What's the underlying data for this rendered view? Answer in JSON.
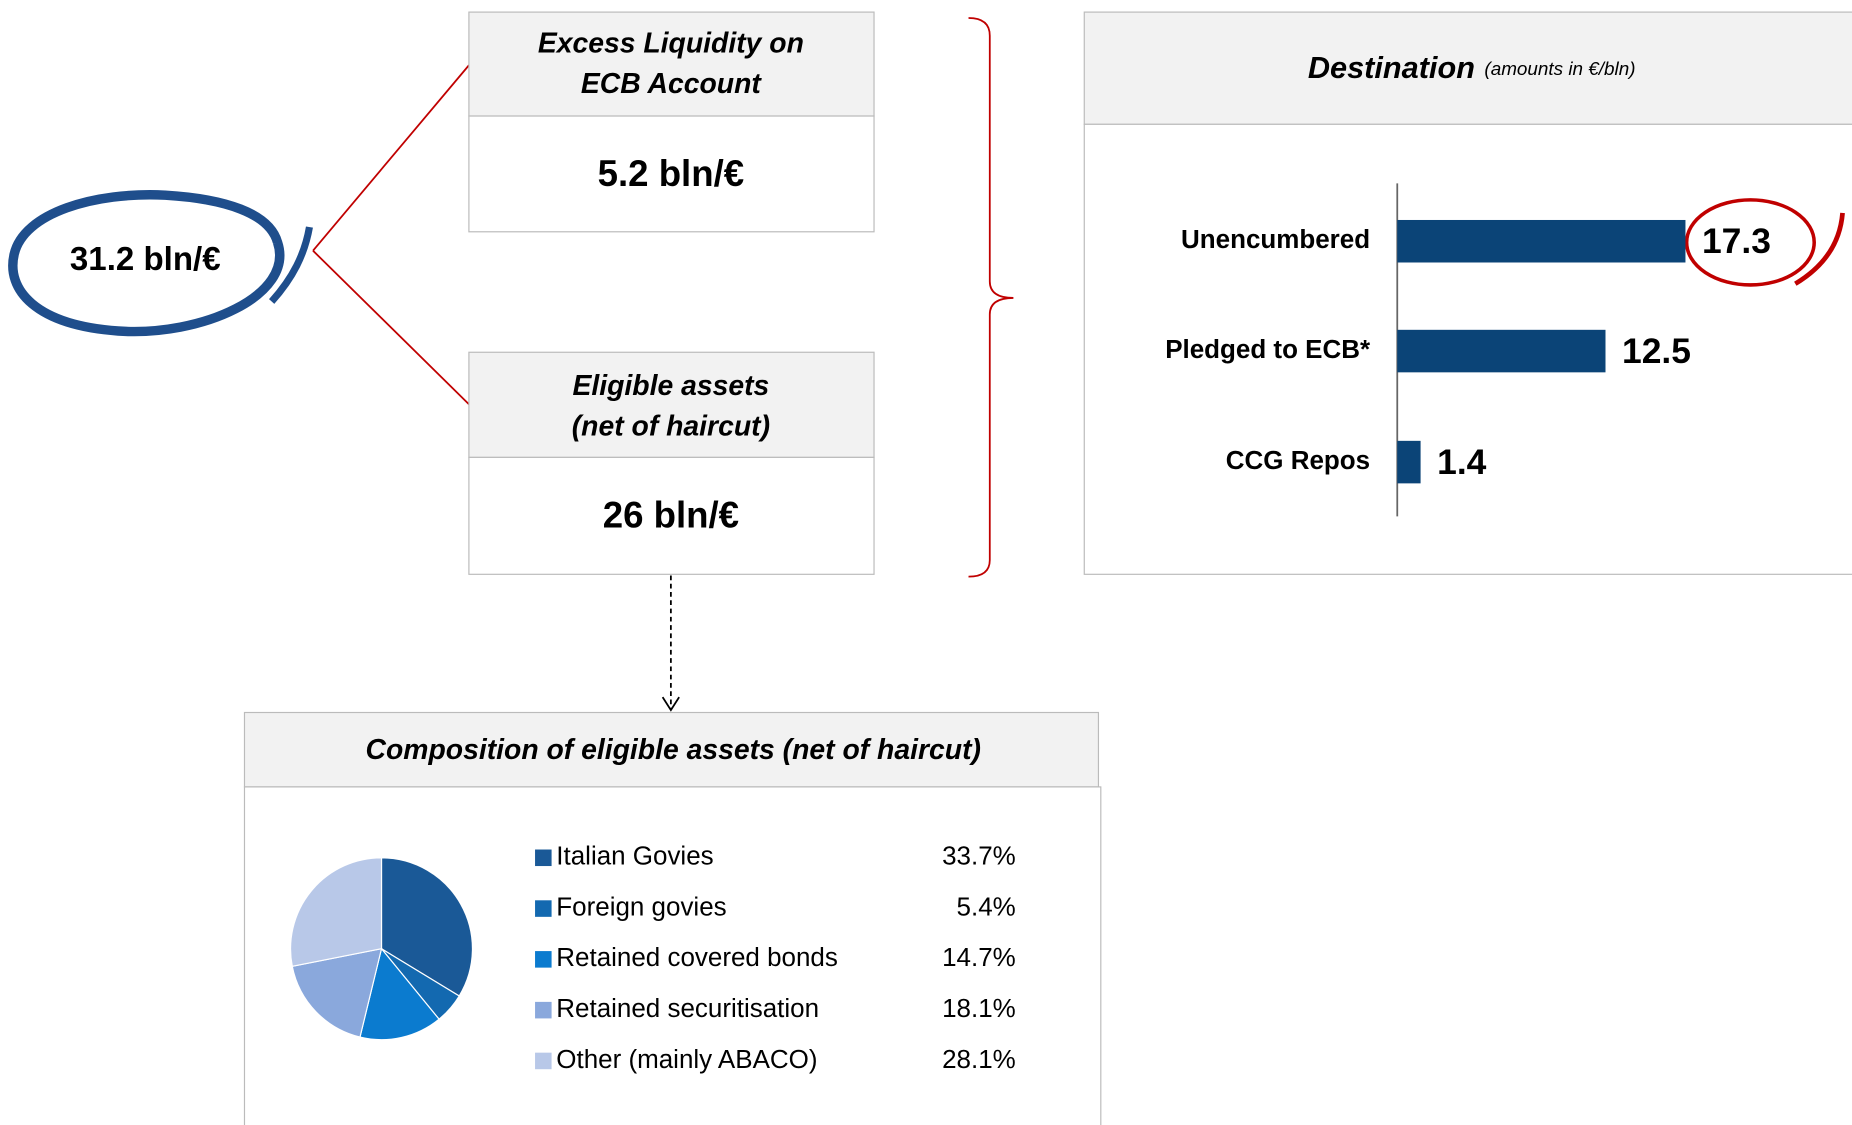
{
  "total": "31.2 bln/€",
  "boxes": [
    {
      "title": [
        "Excess Liquidity on",
        "ECB Account"
      ],
      "value": "5.2 bln/€"
    },
    {
      "title": [
        "Eligible assets",
        "(net of haircut)"
      ],
      "value": "26 bln/€"
    }
  ],
  "chart_data": [
    {
      "type": "bar",
      "orientation": "horizontal",
      "title": "Destination",
      "subtitle": "(amounts in €/bln)",
      "categories": [
        "Unencumbered",
        "Pledged to ECB*",
        "CCG Repos"
      ],
      "values": [
        17.3,
        12.5,
        1.4
      ],
      "color": "#0b4477"
    },
    {
      "type": "pie",
      "title": "Composition of eligible assets (net of haircut)",
      "categories": [
        "Italian Govies",
        "Foreign govies",
        "Retained covered bonds",
        "Retained securitisation",
        "Other (mainly ABACO)"
      ],
      "values": [
        33.7,
        5.4,
        14.7,
        18.1,
        28.1
      ],
      "value_labels": [
        "33.7%",
        "5.4%",
        "14.7%",
        "18.1%",
        "28.1%"
      ],
      "colors": [
        "#1a5997",
        "#1369b0",
        "#0b7bcf",
        "#8aa8dc",
        "#b8c8e8"
      ]
    }
  ]
}
